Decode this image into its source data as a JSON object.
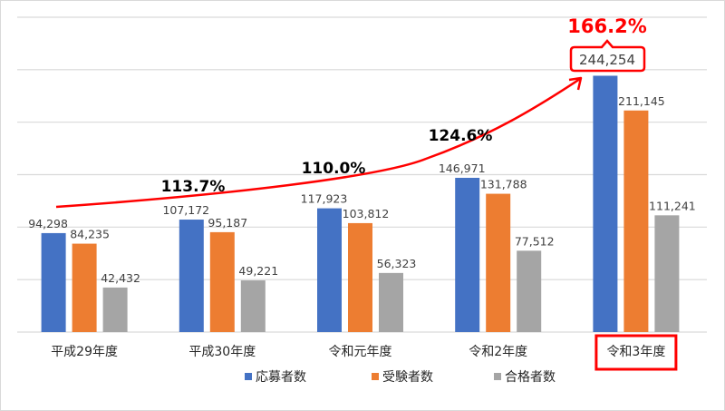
{
  "chart_data": {
    "type": "bar",
    "title": "",
    "xlabel": "",
    "ylabel": "",
    "ylim": [
      0,
      300000
    ],
    "grid": true,
    "gridline_step": 50000,
    "legend_position": "bottom",
    "categories": [
      "平成29年度",
      "平成30年度",
      "令和元年度",
      "令和2年度",
      "令和3年度"
    ],
    "series": [
      {
        "name": "応募者数",
        "color": "#4472C4",
        "values": [
          94298,
          107172,
          117923,
          146971,
          244254
        ],
        "labels": [
          "94,298",
          "107,172",
          "117,923",
          "146,971",
          "244,254"
        ]
      },
      {
        "name": "受験者数",
        "color": "#ED7D31",
        "values": [
          84235,
          95187,
          103812,
          131788,
          211145
        ],
        "labels": [
          "84,235",
          "95,187",
          "103,812",
          "131,788",
          "211,145"
        ]
      },
      {
        "name": "合格者数",
        "color": "#A5A5A5",
        "values": [
          42432,
          49221,
          56323,
          77512,
          111241
        ],
        "labels": [
          "42,432",
          "49,221",
          "56,323",
          "77,512",
          "111,241"
        ]
      }
    ],
    "annotations": {
      "growth_labels": [
        "113.7%",
        "110.0%",
        "124.6%",
        "166.2%"
      ],
      "highlight_label": "166.2%",
      "highlight_value": "244,254",
      "highlight_category": "令和3年度",
      "trend_arrow_color": "#FF0000"
    }
  },
  "colors": {
    "highlight": "#FF0000",
    "gridline": "#D9D9D9",
    "text": "#404040",
    "growth_text": "#000000"
  }
}
